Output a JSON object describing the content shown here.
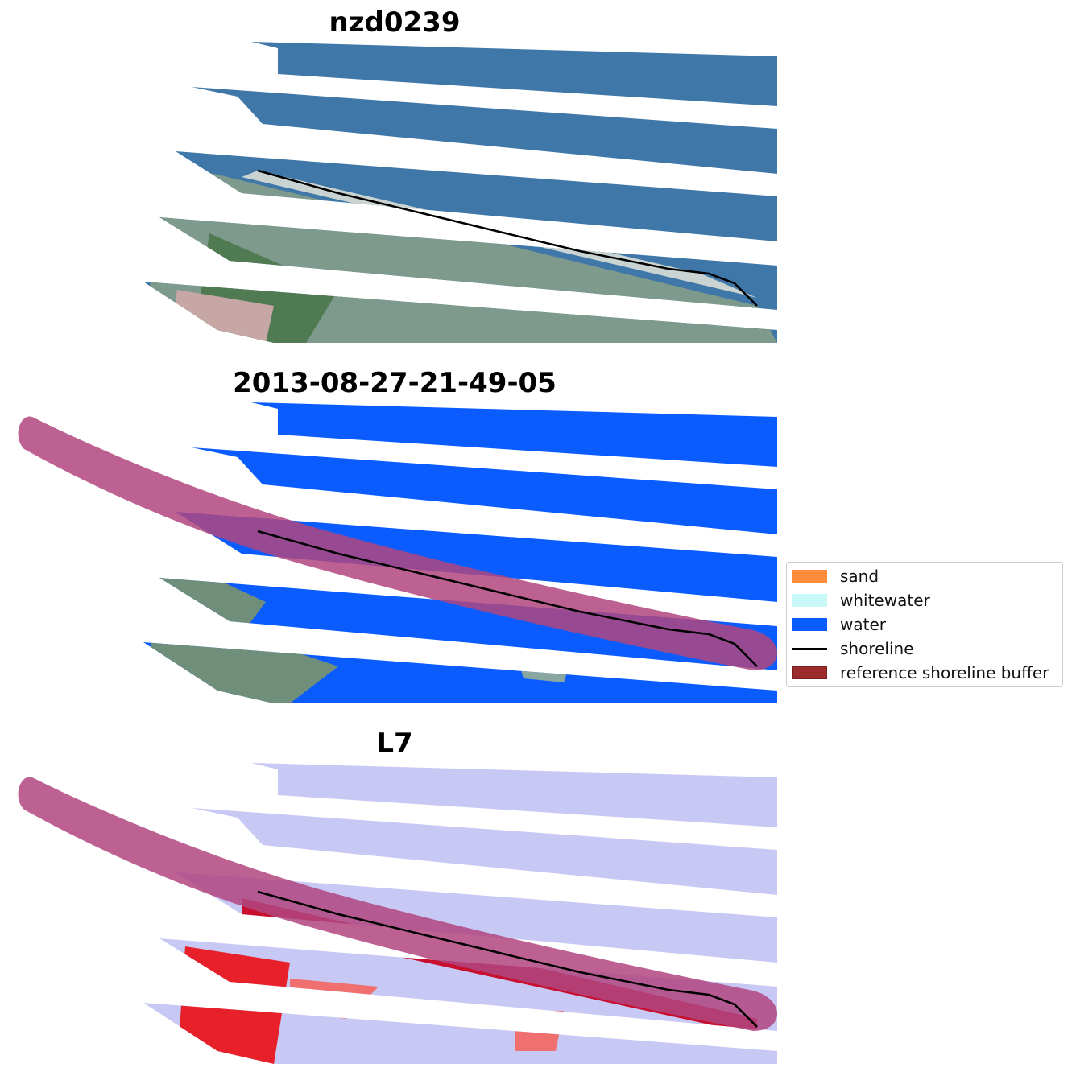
{
  "panels": [
    {
      "id": "rgb",
      "title": "nzd0239"
    },
    {
      "id": "classified",
      "title": "2013-08-27-21-49-05"
    },
    {
      "id": "index",
      "title": "L7"
    }
  ],
  "legend": {
    "items": [
      {
        "label": "sand",
        "color": "#ff8c3a",
        "kind": "swatch"
      },
      {
        "label": "whitewater",
        "color": "#c9f8f8",
        "kind": "swatch"
      },
      {
        "label": "water",
        "color": "#0a5cff",
        "kind": "swatch"
      },
      {
        "label": "shoreline",
        "color": "#000000",
        "kind": "line"
      },
      {
        "label": "reference shoreline buffer",
        "color": "#9b2a2a",
        "kind": "swatch"
      }
    ]
  },
  "colors": {
    "sea_rgb": "#3f77a8",
    "land_rgb": "#7e9a8c",
    "water_class": "#0a5cff",
    "buffer": "#b0457f",
    "index_water": "#c8c8f4",
    "index_land": "#e8202a"
  }
}
